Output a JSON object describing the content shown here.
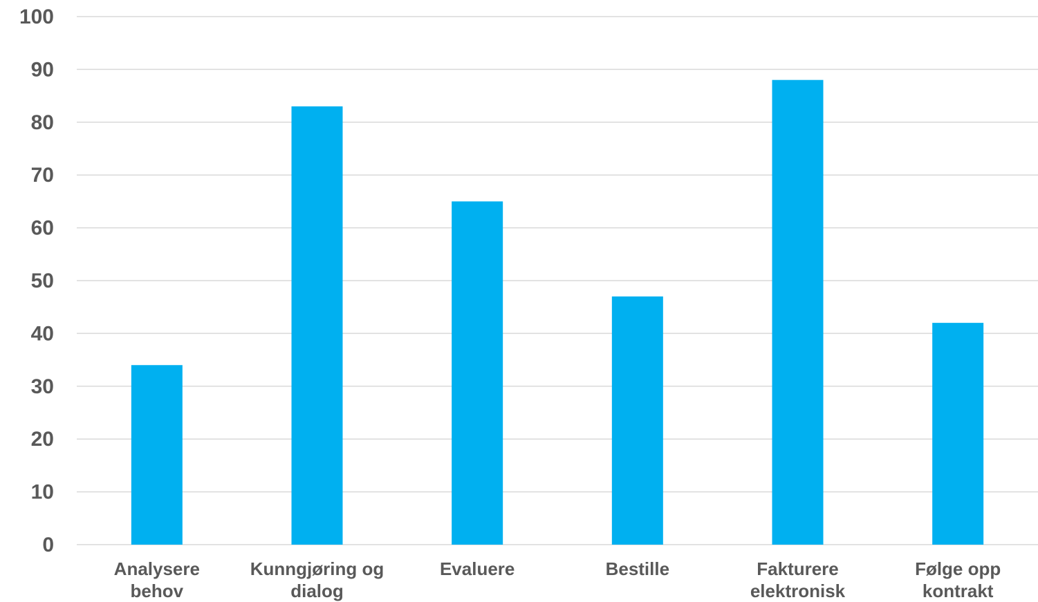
{
  "chart_data": {
    "type": "bar",
    "title": "",
    "xlabel": "",
    "ylabel": "",
    "categories": [
      [
        "Analysere",
        "behov"
      ],
      [
        "Kunngjøring og",
        "dialog"
      ],
      [
        "Evaluere"
      ],
      [
        "Bestille"
      ],
      [
        "Fakturere",
        "elektronisk"
      ],
      [
        "Følge opp",
        "kontrakt"
      ]
    ],
    "values": [
      34,
      83,
      65,
      47,
      88,
      42
    ],
    "ylim": [
      0,
      100
    ],
    "yticks": [
      "0",
      "10",
      "20",
      "30",
      "40",
      "50",
      "60",
      "70",
      "80",
      "90",
      "100"
    ],
    "grid": true,
    "legend": "none",
    "bar_color": "#00b0f0",
    "grid_color": "#d9d9d9",
    "tick_label_color": "#595959"
  }
}
